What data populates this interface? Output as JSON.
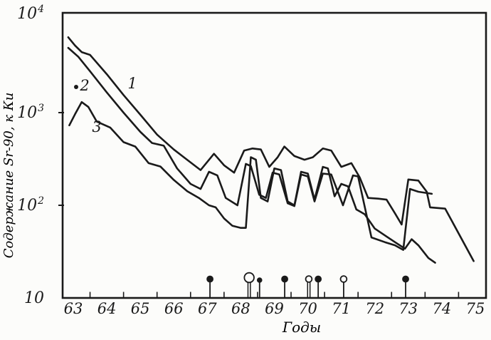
{
  "figure": {
    "kind": "scanned scientific line chart",
    "background_color": "#fcfcfa",
    "ink_color": "#1a1a1a"
  },
  "chart_data": {
    "type": "line",
    "title": "",
    "xlabel": "Годы",
    "ylabel": "Содержание Sr-90, к Ки",
    "yscale": "log",
    "xlim": [
      62.7,
      75.3
    ],
    "ylim": [
      10,
      12000
    ],
    "grid": false,
    "x_ticks": [
      "63",
      "64",
      "65",
      "66",
      "67",
      "68",
      "69",
      "70",
      "71",
      "72",
      "73",
      "74",
      "75"
    ],
    "x_minor_ticks": [
      63.5,
      64.5,
      65.5,
      66.5,
      67.5,
      68.5,
      69.5,
      70.5,
      71.5,
      72.5,
      73.5,
      74.5
    ],
    "y_ticks": [
      {
        "base": "10",
        "exp": "4",
        "value": 10000
      },
      {
        "base": "10",
        "exp": "3",
        "value": 1000
      },
      {
        "base": "10",
        "exp": "2",
        "value": 100
      },
      {
        "base": "10",
        "exp": "",
        "value": 10
      }
    ],
    "series": [
      {
        "name": "1",
        "points": [
          [
            62.85,
            6500
          ],
          [
            63.05,
            5300
          ],
          [
            63.25,
            4500
          ],
          [
            63.5,
            4200
          ],
          [
            64.0,
            2600
          ],
          [
            64.5,
            1550
          ],
          [
            65.0,
            950
          ],
          [
            65.5,
            580
          ],
          [
            66.0,
            400
          ],
          [
            66.45,
            300
          ],
          [
            66.8,
            240
          ],
          [
            67.2,
            360
          ],
          [
            67.5,
            270
          ],
          [
            67.8,
            225
          ],
          [
            68.1,
            390
          ],
          [
            68.35,
            410
          ],
          [
            68.6,
            400
          ],
          [
            68.85,
            260
          ],
          [
            69.1,
            330
          ],
          [
            69.3,
            430
          ],
          [
            69.6,
            340
          ],
          [
            69.9,
            310
          ],
          [
            70.15,
            330
          ],
          [
            70.45,
            410
          ],
          [
            70.7,
            390
          ],
          [
            71.0,
            260
          ],
          [
            71.3,
            285
          ],
          [
            71.55,
            200
          ],
          [
            71.8,
            120
          ],
          [
            72.1,
            118
          ],
          [
            72.35,
            115
          ],
          [
            72.6,
            82
          ],
          [
            72.8,
            62
          ],
          [
            73.0,
            190
          ],
          [
            73.3,
            185
          ],
          [
            73.55,
            140
          ],
          [
            73.65,
            95
          ],
          [
            74.1,
            92
          ],
          [
            74.95,
            25
          ]
        ]
      },
      {
        "name": "2",
        "has_start_dot": true,
        "points": [
          [
            62.85,
            5000
          ],
          [
            63.15,
            4000
          ],
          [
            63.5,
            2800
          ],
          [
            64.0,
            1650
          ],
          [
            64.5,
            1000
          ],
          [
            65.0,
            620
          ],
          [
            65.35,
            470
          ],
          [
            65.7,
            440
          ],
          [
            66.1,
            250
          ],
          [
            66.5,
            170
          ],
          [
            66.8,
            150
          ],
          [
            67.05,
            230
          ],
          [
            67.3,
            210
          ],
          [
            67.55,
            120
          ],
          [
            67.9,
            100
          ],
          [
            68.15,
            280
          ],
          [
            68.3,
            265
          ],
          [
            68.55,
            130
          ],
          [
            68.75,
            120
          ],
          [
            68.95,
            225
          ],
          [
            69.15,
            215
          ],
          [
            69.4,
            105
          ],
          [
            69.6,
            98
          ],
          [
            69.8,
            215
          ],
          [
            70.0,
            205
          ],
          [
            70.2,
            110
          ],
          [
            70.45,
            220
          ],
          [
            70.7,
            215
          ],
          [
            71.05,
            100
          ],
          [
            71.35,
            210
          ],
          [
            71.5,
            205
          ],
          [
            71.9,
            45
          ],
          [
            72.3,
            40
          ],
          [
            72.6,
            37
          ],
          [
            72.85,
            33
          ],
          [
            73.05,
            150
          ],
          [
            73.3,
            140
          ],
          [
            73.7,
            133
          ]
        ]
      },
      {
        "name": "3",
        "points": [
          [
            62.88,
            730
          ],
          [
            63.05,
            960
          ],
          [
            63.25,
            1300
          ],
          [
            63.45,
            1150
          ],
          [
            63.7,
            800
          ],
          [
            64.1,
            690
          ],
          [
            64.5,
            480
          ],
          [
            64.85,
            430
          ],
          [
            65.25,
            285
          ],
          [
            65.6,
            262
          ],
          [
            66.0,
            188
          ],
          [
            66.4,
            142
          ],
          [
            66.75,
            120
          ],
          [
            67.05,
            100
          ],
          [
            67.25,
            95
          ],
          [
            67.5,
            72
          ],
          [
            67.75,
            60
          ],
          [
            68.0,
            57
          ],
          [
            68.15,
            57
          ],
          [
            68.3,
            330
          ],
          [
            68.45,
            310
          ],
          [
            68.6,
            120
          ],
          [
            68.8,
            110
          ],
          [
            69.0,
            250
          ],
          [
            69.2,
            240
          ],
          [
            69.4,
            110
          ],
          [
            69.6,
            100
          ],
          [
            69.8,
            230
          ],
          [
            70.0,
            220
          ],
          [
            70.2,
            115
          ],
          [
            70.45,
            260
          ],
          [
            70.6,
            250
          ],
          [
            70.8,
            125
          ],
          [
            71.0,
            170
          ],
          [
            71.2,
            160
          ],
          [
            71.45,
            90
          ],
          [
            71.7,
            80
          ],
          [
            72.0,
            56
          ],
          [
            72.35,
            46
          ],
          [
            72.65,
            39
          ],
          [
            72.9,
            34
          ],
          [
            73.1,
            43
          ],
          [
            73.3,
            37
          ],
          [
            73.6,
            27
          ],
          [
            73.8,
            24
          ]
        ]
      }
    ],
    "bottom_markers": [
      {
        "year": 67.08,
        "style": "filled",
        "size": "normal",
        "double_stem": false
      },
      {
        "year": 68.25,
        "style": "open",
        "size": "large",
        "double_stem": true
      },
      {
        "year": 68.56,
        "style": "filled",
        "size": "small",
        "double_stem": false
      },
      {
        "year": 69.31,
        "style": "filled",
        "size": "normal",
        "double_stem": false
      },
      {
        "year": 70.03,
        "style": "open",
        "size": "normal",
        "double_stem": true
      },
      {
        "year": 70.31,
        "style": "filled",
        "size": "normal",
        "double_stem": false
      },
      {
        "year": 71.07,
        "style": "open",
        "size": "normal",
        "double_stem": false
      },
      {
        "year": 72.92,
        "style": "filled",
        "size": "normal",
        "double_stem": false
      }
    ]
  }
}
